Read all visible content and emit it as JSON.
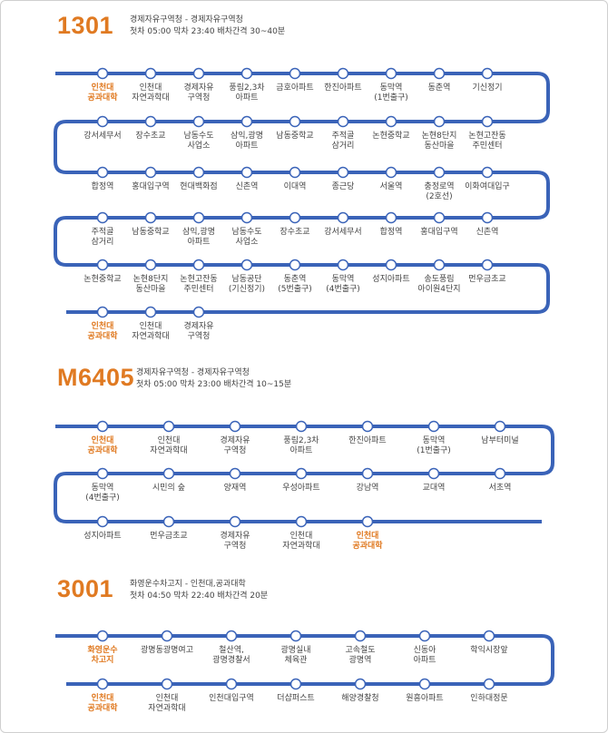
{
  "colors": {
    "accent": "#e07a22",
    "line": "#3a63b8",
    "text": "#444444"
  },
  "routes": [
    {
      "number": "1301",
      "endpoints": "경제자유구역청 - 경제자유구역청",
      "schedule": "첫차 05:00 막차 23:40 배차간격 30~40분",
      "rows": [
        [
          {
            "name": "인천대\n공과대학",
            "hl": true
          },
          {
            "name": "인천대\n자연과학대"
          },
          {
            "name": "경제자유\n구역청"
          },
          {
            "name": "풍림2,3차\n아파트"
          },
          {
            "name": "금호아파트"
          },
          {
            "name": "한진아파트"
          },
          {
            "name": "동막역\n(1번출구)"
          },
          {
            "name": "동춘역"
          },
          {
            "name": "기신정기"
          }
        ],
        [
          {
            "name": "강서세무서"
          },
          {
            "name": "장수초교"
          },
          {
            "name": "남동수도\n사업소"
          },
          {
            "name": "삼익,광명\n아파트"
          },
          {
            "name": "남동중학교"
          },
          {
            "name": "주적골\n삼거리"
          },
          {
            "name": "논현중학교"
          },
          {
            "name": "논현8단지\n동산마을"
          },
          {
            "name": "논현고잔동\n주민센터"
          }
        ],
        [
          {
            "name": "합정역"
          },
          {
            "name": "홍대입구역"
          },
          {
            "name": "현대백화점"
          },
          {
            "name": "신촌역"
          },
          {
            "name": "이대역"
          },
          {
            "name": "종근당"
          },
          {
            "name": "서울역"
          },
          {
            "name": "충정로역\n(2호선)"
          },
          {
            "name": "이화여대입구"
          }
        ],
        [
          {
            "name": "주적골\n삼거리"
          },
          {
            "name": "남동중학교"
          },
          {
            "name": "삼익,광명\n아파트"
          },
          {
            "name": "남동수도\n사업소"
          },
          {
            "name": "장수초교"
          },
          {
            "name": "강서세무서"
          },
          {
            "name": "합정역"
          },
          {
            "name": "홍대입구역"
          },
          {
            "name": "신촌역"
          }
        ],
        [
          {
            "name": "논현중학교"
          },
          {
            "name": "논현8단지\n동산마을"
          },
          {
            "name": "논현고잔동\n주민센터"
          },
          {
            "name": "남동공단\n(기신정기)"
          },
          {
            "name": "동춘역\n(5번출구)"
          },
          {
            "name": "동막역\n(4번출구)"
          },
          {
            "name": "성지아파트"
          },
          {
            "name": "송도풍림\n아이원4단지"
          },
          {
            "name": "먼우금초교"
          }
        ],
        [
          {
            "name": "인천대\n공과대학",
            "hl": true
          },
          {
            "name": "인천대\n자연과학대"
          },
          {
            "name": "경제자유\n구역청"
          }
        ]
      ]
    },
    {
      "number": "M6405",
      "endpoints": "경제자유구역청 - 경제자유구역청",
      "schedule": "첫차 05:00 막차 23:00 배차간격 10~15분",
      "rows": [
        [
          {
            "name": "인천대\n공과대학",
            "hl": true
          },
          {
            "name": "인천대\n자연과학대"
          },
          {
            "name": "경제자유\n구역청"
          },
          {
            "name": "풍림2,3차\n아파트"
          },
          {
            "name": "한진아파트"
          },
          {
            "name": "동막역\n(1번출구)"
          },
          {
            "name": "남부터미널"
          }
        ],
        [
          {
            "name": "동막역\n(4번출구)"
          },
          {
            "name": "시민의 숲"
          },
          {
            "name": "양재역"
          },
          {
            "name": "우성아파트"
          },
          {
            "name": "강남역"
          },
          {
            "name": "교대역"
          },
          {
            "name": "서초역"
          }
        ],
        [
          {
            "name": "성지아파트"
          },
          {
            "name": "먼우금초교"
          },
          {
            "name": "경제자유\n구역청"
          },
          {
            "name": "인천대\n자연과학대"
          },
          {
            "name": "인천대\n공과대학",
            "hl": true
          }
        ]
      ]
    },
    {
      "number": "3001",
      "endpoints": "화영운수차고지 - 인천대,공과대학",
      "schedule": "첫차 04:50 막차 22:40 배차간격 20분",
      "rows": [
        [
          {
            "name": "화영운수\n차고지",
            "hl": true
          },
          {
            "name": "광명동광명여고"
          },
          {
            "name": "철산역,\n광명경찰서"
          },
          {
            "name": "광명실내\n체육관"
          },
          {
            "name": "고속철도\n광명역"
          },
          {
            "name": "신동아\n아파트"
          },
          {
            "name": "학익시장앞"
          }
        ],
        [
          {
            "name": "인천대\n공과대학",
            "hl": true
          },
          {
            "name": "인천대\n자연과학대"
          },
          {
            "name": "인천대입구역"
          },
          {
            "name": "더샵퍼스트"
          },
          {
            "name": "해양경찰청"
          },
          {
            "name": "원흥아파트"
          },
          {
            "name": "인하대정문"
          }
        ]
      ]
    }
  ]
}
